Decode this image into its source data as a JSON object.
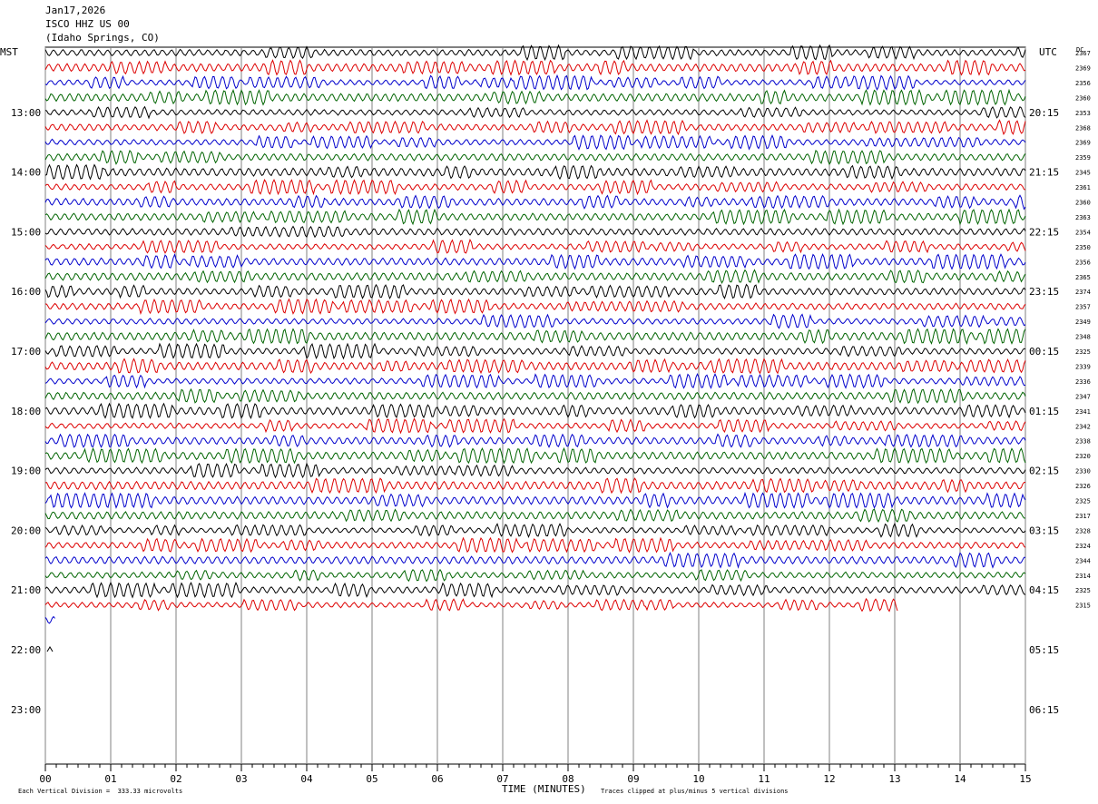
{
  "header": {
    "date": "Jan17,2026",
    "station": "ISCO HHZ US 00",
    "location": "(Idaho Springs, CO)"
  },
  "left_axis_title": "MST",
  "right_axis_title": "UTC",
  "dc_label": "DC",
  "colors": {
    "black": "#000000",
    "red": "#dd0000",
    "blue": "#0000cc",
    "green": "#006400",
    "grid": "#808080"
  },
  "footer": {
    "scale_note": "Each Vertical Division =  333.33 microvolts",
    "xlabel": "TIME (MINUTES)",
    "clip_note": "Traces clipped at plus/minus 5 vertical divisions"
  },
  "chart_data": {
    "type": "line",
    "title": "ISCO HHZ US 00 (Idaho Springs, CO) Jan17,2026",
    "xlabel": "TIME (MINUTES)",
    "xlim": [
      0,
      15
    ],
    "x_ticks": [
      "00",
      "01",
      "02",
      "03",
      "04",
      "05",
      "06",
      "07",
      "08",
      "09",
      "10",
      "11",
      "12",
      "13",
      "14",
      "15"
    ],
    "left_hour_labels": [
      "13:00",
      "14:00",
      "15:00",
      "16:00",
      "17:00",
      "18:00",
      "19:00",
      "20:00",
      "21:00",
      "22:00",
      "23:00"
    ],
    "right_hour_labels": [
      "20:15",
      "21:15",
      "22:15",
      "23:15",
      "00:15",
      "01:15",
      "02:15",
      "03:15",
      "04:15",
      "05:15",
      "06:15"
    ],
    "trace_color_cycle": [
      "black",
      "red",
      "blue",
      "green"
    ],
    "dc_offsets": [
      "2367",
      "2369",
      "2356",
      "2360",
      "2353",
      "2368",
      "2369",
      "2359",
      "2345",
      "2361",
      "2360",
      "2363",
      "2354",
      "2350",
      "2356",
      "2365",
      "2374",
      "2357",
      "2349",
      "2348",
      "2325",
      "2339",
      "2336",
      "2347",
      "2341",
      "2342",
      "2338",
      "2320",
      "2330",
      "2326",
      "2325",
      "2317",
      "2328",
      "2324",
      "2344",
      "2314",
      "2325",
      "2315"
    ],
    "trace_count": 38,
    "last_trace_end_minute": 13.05,
    "partial_trace_end_minute": 0.15,
    "trace_amplitude_divisions": 5
  }
}
